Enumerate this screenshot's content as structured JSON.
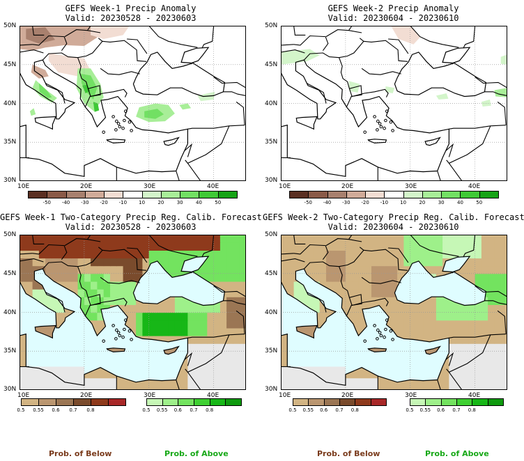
{
  "panels": [
    {
      "title": "GEFS Week-1 Precip Anomaly",
      "valid": "Valid: 20230528 - 20230603",
      "kind": "anomaly"
    },
    {
      "title": "GEFS Week-2 Precip Anomaly",
      "valid": "Valid: 20230604 - 20230610",
      "kind": "anomaly"
    },
    {
      "title": "GEFS Week-1 Two-Category Precip Reg. Calib. Forecast",
      "valid": "Valid: 20230528 - 20230603",
      "kind": "prob"
    },
    {
      "title": "GEFS Week-2 Two-Category Precip Reg. Calib. Forecast",
      "valid": "Valid: 20230604 - 20230610",
      "kind": "prob"
    }
  ],
  "axes": {
    "lat_labels": [
      "50N",
      "45N",
      "40N",
      "35N",
      "30N"
    ],
    "lon_labels": [
      "10E",
      "20E",
      "30E",
      "40E"
    ]
  },
  "anomaly_colorbar": {
    "ticks": [
      "-50",
      "-40",
      "-30",
      "-20",
      "-10",
      "10",
      "20",
      "30",
      "40",
      "50"
    ],
    "colors": [
      "#5a2f22",
      "#8a5a48",
      "#a8806e",
      "#d0ab99",
      "#f2ddd3",
      "#ffffff",
      "#d3f5ca",
      "#a8ee98",
      "#72e063",
      "#3fc936",
      "#16a316"
    ]
  },
  "prob_colorbar_below": {
    "ticks": [
      "0.5",
      "0.55",
      "0.6",
      "0.7",
      "0.8"
    ],
    "colors": [
      "#d2b483",
      "#ba9670",
      "#9b7654",
      "#7a4b2c",
      "#8e3a1c",
      "#a82828"
    ]
  },
  "prob_colorbar_above": {
    "ticks": [
      "0.5",
      "0.55",
      "0.6",
      "0.7",
      "0.8"
    ],
    "colors": [
      "#c6f7b6",
      "#9ef08a",
      "#73e35f",
      "#3fd032",
      "#17b717",
      "#0e9a0e"
    ]
  },
  "labels": {
    "prob_below": "Prob. of Below",
    "prob_above": "Prob. of Above"
  },
  "colors": {
    "sea_prob": "#dffdff",
    "nodata": "#e8e8e8",
    "prob_below_text": "#7a3b1c",
    "prob_above_text": "#17a817"
  }
}
